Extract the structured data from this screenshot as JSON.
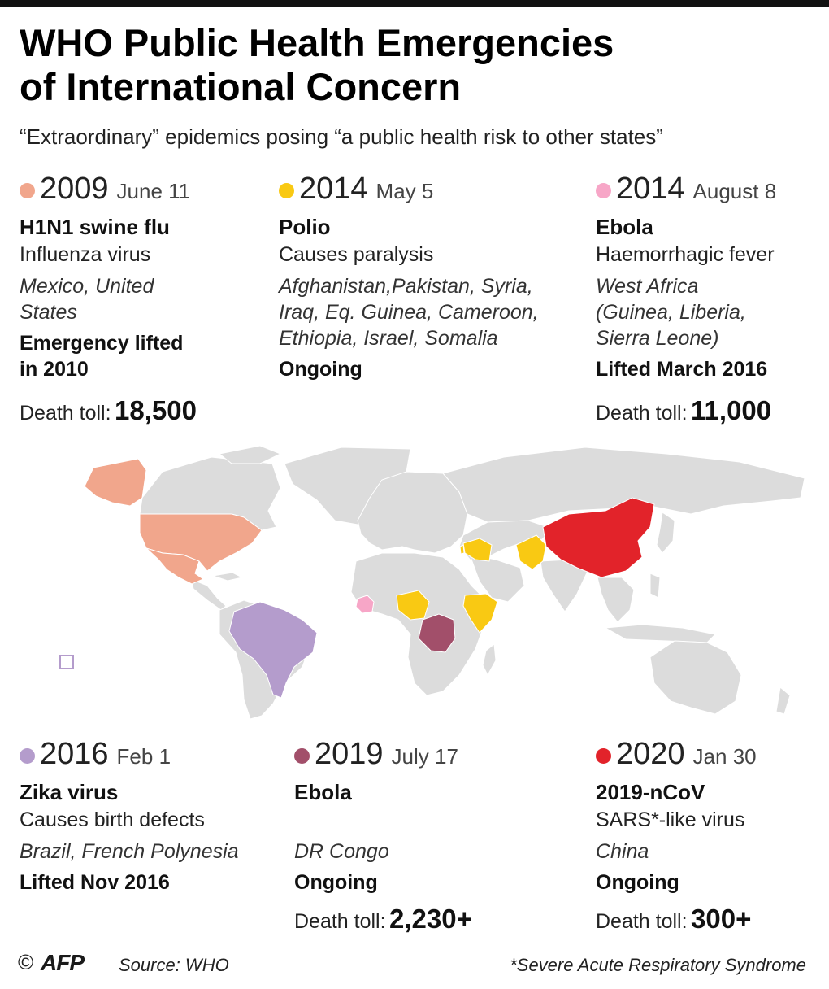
{
  "title_line1": "WHO Public Health Emergencies",
  "title_line2": "of International Concern",
  "subtitle": "“Extraordinary” epidemics posing “a public health risk to other states”",
  "emergencies": [
    {
      "year": "2009",
      "date": "June 11",
      "color": "#f1a68c",
      "name": "H1N1 swine flu",
      "type": "Influenza virus",
      "place": [
        "Mexico, United",
        "States"
      ],
      "status": [
        "Emergency lifted",
        "in 2010"
      ],
      "toll_label": "Death toll:",
      "toll": "18,500"
    },
    {
      "year": "2014",
      "date": "May 5",
      "color": "#f9c913",
      "name": "Polio",
      "type": "Causes paralysis",
      "place": [
        "Afghanistan,Pakistan, Syria,",
        "Iraq, Eq. Guinea,  Cameroon,",
        "Ethiopia, Israel, Somalia"
      ],
      "status": [
        "Ongoing"
      ]
    },
    {
      "year": "2014",
      "date": "August 8",
      "color": "#f7a6c7",
      "name": "Ebola",
      "type": "Haemorrhagic fever",
      "place": [
        "West Africa",
        "(Guinea, Liberia,",
        "Sierra Leone)"
      ],
      "status": [
        "Lifted March 2016"
      ],
      "toll_label": "Death toll:",
      "toll": "11,000"
    },
    {
      "year": "2016",
      "date": "Feb 1",
      "color": "#b49ccc",
      "name": "Zika virus",
      "type": "Causes birth defects",
      "place": [
        "Brazil, French Polynesia"
      ],
      "status": [
        "Lifted Nov 2016"
      ]
    },
    {
      "year": "2019",
      "date": "July 17",
      "color": "#a24f6a",
      "name": "Ebola",
      "type": "",
      "place": [
        "DR Congo"
      ],
      "status": [
        "Ongoing"
      ],
      "toll_label": "Death toll:",
      "toll": "2,230+"
    },
    {
      "year": "2020",
      "date": "Jan 30",
      "color": "#e2232a",
      "name": "2019-nCoV",
      "type": "SARS*-like virus",
      "place": [
        "China"
      ],
      "status": [
        "Ongoing"
      ],
      "toll_label": "Death toll:",
      "toll": "300+"
    }
  ],
  "map_colors": {
    "land": "#dcdcdc",
    "h1n1": "#f1a68c",
    "polio": "#f9c913",
    "ebola_west_africa": "#f7a6c7",
    "zika": "#b49ccc",
    "ebola_drc": "#a24f6a",
    "ncov": "#e2232a"
  },
  "footer": {
    "copyright": "©",
    "logo_text": "AFP",
    "source": "Source: WHO",
    "footnote": "*Severe Acute Respiratory Syndrome"
  }
}
